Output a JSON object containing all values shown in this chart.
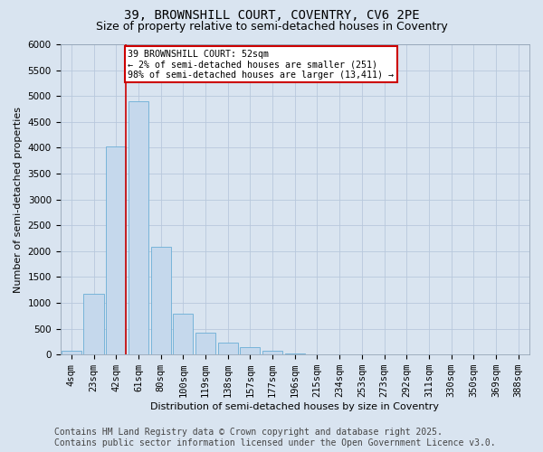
{
  "title_line1": "39, BROWNSHILL COURT, COVENTRY, CV6 2PE",
  "title_line2": "Size of property relative to semi-detached houses in Coventry",
  "xlabel": "Distribution of semi-detached houses by size in Coventry",
  "ylabel": "Number of semi-detached properties",
  "categories": [
    "4sqm",
    "23sqm",
    "42sqm",
    "61sqm",
    "80sqm",
    "100sqm",
    "119sqm",
    "138sqm",
    "157sqm",
    "177sqm",
    "196sqm",
    "215sqm",
    "234sqm",
    "253sqm",
    "273sqm",
    "292sqm",
    "311sqm",
    "330sqm",
    "350sqm",
    "369sqm",
    "388sqm"
  ],
  "values": [
    80,
    1180,
    4020,
    4900,
    2080,
    790,
    420,
    230,
    150,
    80,
    30,
    10,
    5,
    2,
    1,
    0,
    0,
    0,
    0,
    0,
    0
  ],
  "bar_color": "#c5d8ec",
  "bar_edge_color": "#6aaed6",
  "annotation_text": "39 BROWNSHILL COURT: 52sqm\n← 2% of semi-detached houses are smaller (251)\n98% of semi-detached houses are larger (13,411) →",
  "annotation_box_color": "#ffffff",
  "annotation_box_edge": "#cc0000",
  "redline_color": "#cc0000",
  "ylim": [
    0,
    6000
  ],
  "yticks": [
    0,
    500,
    1000,
    1500,
    2000,
    2500,
    3000,
    3500,
    4000,
    4500,
    5000,
    5500,
    6000
  ],
  "grid_color": "#b8c8dc",
  "background_color": "#d9e4f0",
  "footer_line1": "Contains HM Land Registry data © Crown copyright and database right 2025.",
  "footer_line2": "Contains public sector information licensed under the Open Government Licence v3.0.",
  "title_fontsize": 10,
  "subtitle_fontsize": 9,
  "tick_fontsize": 7.5,
  "label_fontsize": 8,
  "footer_fontsize": 7,
  "redline_x": 2.43
}
